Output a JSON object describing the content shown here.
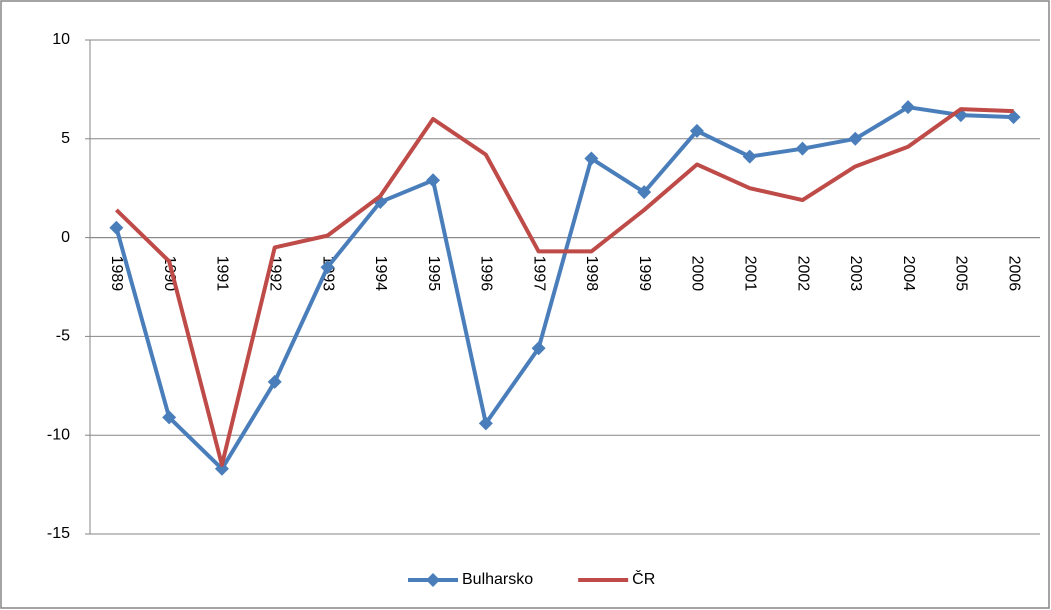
{
  "chart_data": {
    "type": "line",
    "categories": [
      "1989",
      "1990",
      "1991",
      "1992",
      "1993",
      "1994",
      "1995",
      "1996",
      "1997",
      "1998",
      "1999",
      "2000",
      "2001",
      "2002",
      "2003",
      "2004",
      "2005",
      "2006"
    ],
    "series": [
      {
        "name": "Bulharsko",
        "color": "#4a7ebb",
        "marker": "diamond",
        "values": [
          0.5,
          -9.1,
          -11.7,
          -7.3,
          -1.5,
          1.8,
          2.9,
          -9.4,
          -5.6,
          4.0,
          2.3,
          5.4,
          4.1,
          4.5,
          5.0,
          6.6,
          6.2,
          6.1
        ]
      },
      {
        "name": "ČR",
        "color": "#be4b48",
        "marker": "none",
        "values": [
          1.4,
          -1.2,
          -11.5,
          -0.5,
          0.1,
          2.1,
          6.0,
          4.2,
          -0.7,
          -0.7,
          1.4,
          3.7,
          2.5,
          1.9,
          3.6,
          4.6,
          6.5,
          6.4
        ]
      }
    ],
    "ylim": [
      -15,
      10
    ],
    "yticks": [
      -15,
      -10,
      -5,
      0,
      5,
      10
    ],
    "grid": true,
    "legend": "bottom"
  }
}
